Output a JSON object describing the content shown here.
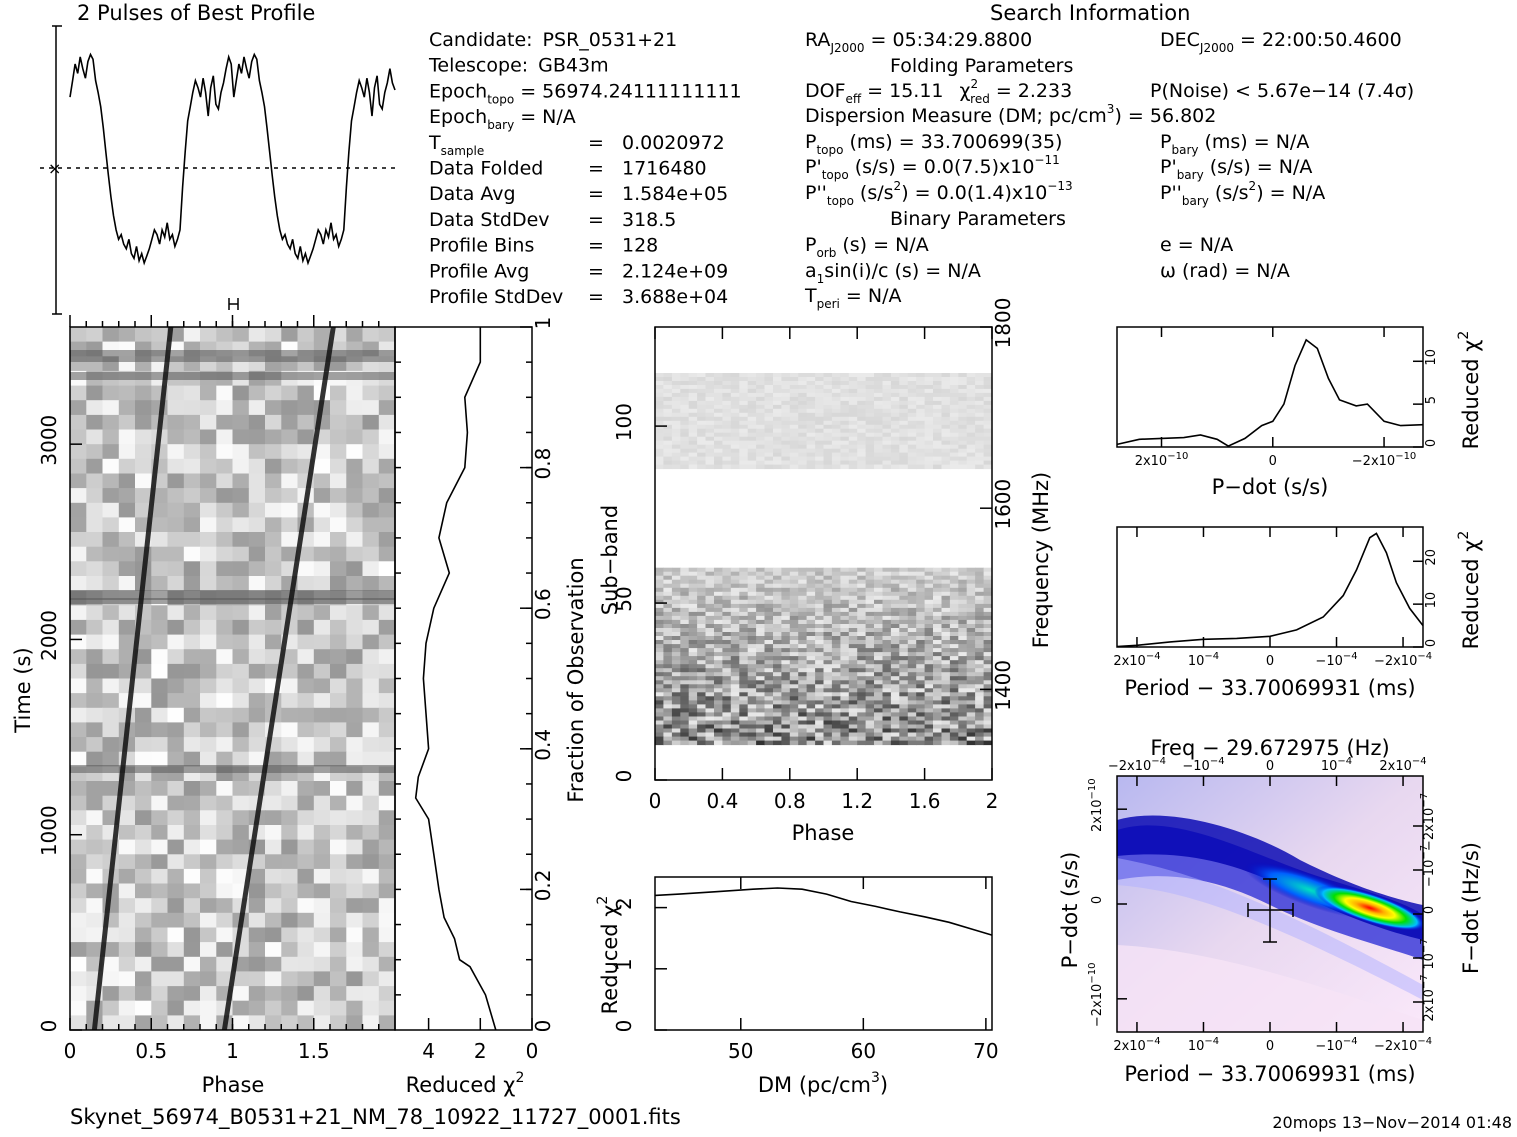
{
  "header": {
    "profile_title": "2 Pulses of Best Profile",
    "search_title": "Search Information",
    "folding_title": "Folding Parameters",
    "binary_title": "Binary Parameters"
  },
  "info": {
    "left": [
      {
        "label": "Candidate:",
        "value": "PSR_0531+21"
      },
      {
        "label": "Telescope:",
        "value": "GB43m"
      },
      {
        "label": "Epoch",
        "sub": "topo",
        "value": "= 56974.24111111111"
      },
      {
        "label": "Epoch",
        "sub": "bary",
        "value": "= N/A"
      },
      {
        "label": "T",
        "sub": "sample",
        "value": "0.0020972"
      },
      {
        "label": "Data Folded",
        "value": "1716480"
      },
      {
        "label": "Data Avg",
        "value": "1.584e+05"
      },
      {
        "label": "Data StdDev",
        "value": "318.5"
      },
      {
        "label": "Profile Bins",
        "value": "128"
      },
      {
        "label": "Profile Avg",
        "value": "2.124e+09"
      },
      {
        "label": "Profile StdDev",
        "value": "3.688e+04"
      }
    ],
    "ra": "RA",
    "ra_sub": "J2000",
    "ra_value": "= 05:34:29.8800",
    "dec": "DEC",
    "dec_sub": "J2000",
    "dec_value": "= 22:00:50.4600",
    "dof": "DOF",
    "dof_sub": "eff",
    "dof_value": "= 15.11",
    "chi": "χ",
    "chi_sup": "2",
    "chi_sub": "red",
    "chi_value": "= 2.233",
    "pnoise": "P(Noise) < 5.67e−14   (7.4σ)",
    "dm_line": "Dispersion Measure (DM; pc/cm",
    "dm_sup": "3",
    "dm_value": ") = 56.802",
    "ptopo": "P",
    "ptopo_sub": "topo",
    "ptopo_value": "(ms) =  33.700699(35)",
    "pbary": "P",
    "pbary_sub": "bary",
    "pbary_value": "(ms) = N/A",
    "pdtopo": "P'",
    "pdtopo_sub": "topo",
    "pdtopo_value": "(s/s) = 0.0(7.5)x10",
    "pdtopo_exp": "−11",
    "pdbary": "P'",
    "pdbary_sub": "bary",
    "pdbary_value": "(s/s) = N/A",
    "pddtopo": "P''",
    "pddtopo_sub": "topo",
    "pddtopo_value": "(s/s",
    "pddtopo_sup": "2",
    "pddtopo_value2": ") = 0.0(1.4)x10",
    "pddtopo_exp": "−13",
    "pddbary": "P''",
    "pddbary_sub": "bary",
    "pddbary_value": "(s/s",
    "pddbary_sup": "2",
    "pddbary_value2": ") = N/A",
    "porb": "P",
    "porb_sub": "orb",
    "porb_value": "(s) = N/A",
    "asini": "a",
    "asini_sub": "1",
    "asini_value": "sin(i)/c (s) = N/A",
    "tperi": "T",
    "tperi_sub": "peri",
    "tperi_value": "= N/A",
    "ecc": "e = N/A",
    "omega": "ω (rad) = N/A"
  },
  "footer": {
    "filename": "Skynet_56974_B0531+21_NM_78_10922_11727_0001.fits",
    "stamp": "20mops 13−Nov−2014 01:48"
  },
  "chart_data": [
    {
      "id": "profile",
      "type": "line",
      "title": "2 Pulses of Best Profile",
      "xlim": [
        0,
        2
      ],
      "x_label": "",
      "y_label": "",
      "values": [
        0.78,
        0.85,
        0.92,
        0.88,
        0.95,
        0.9,
        0.86,
        0.93,
        0.96,
        0.94,
        0.85,
        0.8,
        0.74,
        0.65,
        0.55,
        0.45,
        0.36,
        0.28,
        0.22,
        0.18,
        0.2,
        0.16,
        0.14,
        0.18,
        0.12,
        0.1,
        0.15,
        0.09,
        0.12,
        0.08,
        0.11,
        0.14,
        0.18,
        0.22,
        0.2,
        0.16,
        0.22,
        0.19,
        0.25,
        0.18,
        0.2,
        0.15,
        0.18,
        0.22,
        0.4,
        0.55,
        0.68,
        0.74,
        0.8,
        0.85,
        0.82,
        0.78,
        0.86,
        0.8,
        0.7,
        0.82,
        0.87,
        0.75,
        0.73,
        0.8,
        0.84,
        0.9,
        0.95,
        0.92,
        0.78,
        0.85,
        0.92,
        0.88,
        0.95,
        0.9,
        0.86,
        0.93,
        0.96,
        0.94,
        0.85,
        0.8,
        0.74,
        0.65,
        0.55,
        0.45,
        0.36,
        0.28,
        0.22,
        0.18,
        0.2,
        0.16,
        0.14,
        0.18,
        0.12,
        0.1,
        0.15,
        0.09,
        0.12,
        0.08,
        0.11,
        0.14,
        0.18,
        0.22,
        0.2,
        0.16,
        0.22,
        0.19,
        0.25,
        0.18,
        0.2,
        0.15,
        0.18,
        0.22,
        0.4,
        0.55,
        0.68,
        0.74,
        0.8,
        0.85,
        0.82,
        0.78,
        0.86,
        0.8,
        0.7,
        0.82,
        0.87,
        0.75,
        0.73,
        0.8,
        0.84,
        0.9,
        0.84,
        0.81
      ],
      "noise_level_fraction": 0.55
    },
    {
      "id": "time-phase",
      "type": "heatmap",
      "x_label": "Phase",
      "y_label": "Time (s)",
      "x_ticks": [
        "0",
        "0.5",
        "1",
        "1.5"
      ],
      "x_tick_values": [
        0,
        0.5,
        1,
        1.5
      ],
      "xlim": [
        0,
        2
      ],
      "y_ticks": [
        "0",
        "1000",
        "2000",
        "3000"
      ],
      "y_tick_values": [
        0,
        1000,
        2000,
        3000
      ],
      "ylim": [
        0,
        3600
      ],
      "pulse_start_phase": [
        0.15,
        0.95
      ],
      "pulse_end_phase": [
        0.62,
        1.62
      ]
    },
    {
      "id": "chi-vs-time",
      "type": "line",
      "x_label": "Reduced χ",
      "x_label_sup": "2",
      "x_ticks": [
        "4",
        "2",
        "0"
      ],
      "x_tick_values": [
        4,
        2,
        0
      ],
      "xlim": [
        5.3,
        0
      ],
      "y_label": "Fraction of Observation",
      "y_ticks": [
        "0.2",
        "0.4",
        "0.6",
        "0.8",
        "1"
      ],
      "y_tick_values": [
        0.2,
        0.4,
        0.6,
        0.8,
        1
      ],
      "ylim": [
        0,
        1
      ],
      "points": [
        [
          1.4,
          0
        ],
        [
          1.8,
          0.05
        ],
        [
          2.4,
          0.09
        ],
        [
          2.8,
          0.1
        ],
        [
          3.0,
          0.13
        ],
        [
          3.4,
          0.16
        ],
        [
          3.6,
          0.2
        ],
        [
          3.8,
          0.25
        ],
        [
          4.0,
          0.3
        ],
        [
          4.5,
          0.33
        ],
        [
          4.4,
          0.36
        ],
        [
          4.0,
          0.4
        ],
        [
          4.1,
          0.45
        ],
        [
          4.2,
          0.5
        ],
        [
          4.1,
          0.55
        ],
        [
          3.8,
          0.6
        ],
        [
          3.2,
          0.65
        ],
        [
          3.6,
          0.7
        ],
        [
          3.3,
          0.75
        ],
        [
          2.6,
          0.8
        ],
        [
          2.5,
          0.85
        ],
        [
          2.6,
          0.9
        ],
        [
          2.0,
          0.95
        ],
        [
          2.0,
          1.0
        ]
      ]
    },
    {
      "id": "subband-phase",
      "type": "heatmap",
      "x_label": "Phase",
      "x_ticks": [
        "0",
        "0.4",
        "0.8",
        "1.2",
        "1.6",
        "2"
      ],
      "x_tick_values": [
        0,
        0.4,
        0.8,
        1.2,
        1.6,
        2
      ],
      "xlim": [
        0,
        2
      ],
      "y_label": "Sub−band",
      "y_ticks": [
        "0",
        "50",
        "100"
      ],
      "y_tick_values": [
        0,
        50,
        100
      ],
      "ylim": [
        0,
        128
      ],
      "y2_label": "Frequency (MHz)",
      "y2_ticks": [
        "1400",
        "1600",
        "1800"
      ],
      "y2_tick_values": [
        1400,
        1600,
        1800
      ],
      "y2lim": [
        1300,
        1800
      ],
      "band_low_subbands": [
        10,
        60
      ],
      "band_high_subbands": [
        88,
        115
      ]
    },
    {
      "id": "dm-curve",
      "type": "line",
      "x_label": "DM (pc/cm",
      "x_label_sup": "3",
      "x_label_end": ")",
      "x_ticks": [
        "50",
        "60",
        "70"
      ],
      "x_tick_values": [
        50,
        60,
        70
      ],
      "xlim": [
        43,
        70.5
      ],
      "y_label": "Reduced χ",
      "y_label_sup": "2",
      "y_ticks": [
        "0",
        "1",
        "2"
      ],
      "y_tick_values": [
        0,
        1,
        2
      ],
      "ylim": [
        0,
        2.5
      ],
      "points": [
        [
          43,
          2.2
        ],
        [
          45,
          2.22
        ],
        [
          48,
          2.26
        ],
        [
          51,
          2.3
        ],
        [
          53,
          2.32
        ],
        [
          55,
          2.3
        ],
        [
          57,
          2.22
        ],
        [
          59,
          2.1
        ],
        [
          61,
          2.02
        ],
        [
          63,
          1.93
        ],
        [
          65,
          1.85
        ],
        [
          67,
          1.76
        ],
        [
          69,
          1.64
        ],
        [
          70.5,
          1.55
        ]
      ]
    },
    {
      "id": "pdot-curve",
      "type": "line",
      "x_label": "P−dot (s/s)",
      "x_ticks": [
        "2x10",
        "0",
        "−2x10"
      ],
      "x_tick_exp": [
        "−10",
        "",
        "−10"
      ],
      "x_tick_values": [
        2e-10,
        0,
        -2e-10
      ],
      "xlim": [
        2.8e-10,
        -2.7e-10
      ],
      "y_label": "Reduced χ",
      "y_label_sup": "2",
      "y_ticks": [
        "0",
        "5",
        "10"
      ],
      "y_tick_values": [
        0,
        5,
        10
      ],
      "ylim": [
        0,
        14
      ],
      "points": [
        [
          2.8e-10,
          0.3
        ],
        [
          2.4e-10,
          0.9
        ],
        [
          2e-10,
          1.0
        ],
        [
          1.6e-10,
          1.1
        ],
        [
          1.3e-10,
          1.4
        ],
        [
          1e-10,
          0.9
        ],
        [
          8e-11,
          0.1
        ],
        [
          5e-11,
          1.0
        ],
        [
          2e-11,
          2.5
        ],
        [
          0,
          3.0
        ],
        [
          -2e-11,
          5.0
        ],
        [
          -4e-11,
          9.5
        ],
        [
          -6e-11,
          12.5
        ],
        [
          -8e-11,
          11.5
        ],
        [
          -1e-10,
          8.0
        ],
        [
          -1.2e-10,
          5.5
        ],
        [
          -1.5e-10,
          4.8
        ],
        [
          -1.7e-10,
          5.0
        ],
        [
          -2e-10,
          3.0
        ],
        [
          -2.3e-10,
          2.5
        ],
        [
          -2.7e-10,
          2.6
        ]
      ]
    },
    {
      "id": "period-curve",
      "type": "line",
      "x_label": "Period − 33.70069931 (ms)",
      "x_ticks": [
        "2x10",
        "10",
        "0",
        "−10",
        "−2x10"
      ],
      "x_tick_exp": [
        "−4",
        "−4",
        "",
        "−4",
        "−4"
      ],
      "x_tick_values": [
        0.0002,
        0.0001,
        0,
        -0.0001,
        -0.0002
      ],
      "xlim": [
        0.00023,
        -0.00023
      ],
      "y_label": "Reduced χ",
      "y_label_sup": "2",
      "y_ticks": [
        "0",
        "10",
        "20"
      ],
      "y_tick_values": [
        0,
        10,
        20
      ],
      "ylim": [
        0,
        28
      ],
      "points": [
        [
          0.00023,
          0.1
        ],
        [
          0.0002,
          0.4
        ],
        [
          0.00015,
          1.2
        ],
        [
          0.0001,
          1.8
        ],
        [
          5e-05,
          2.0
        ],
        [
          0,
          2.5
        ],
        [
          -4e-05,
          4.0
        ],
        [
          -8e-05,
          7.0
        ],
        [
          -0.00011,
          12.0
        ],
        [
          -0.00013,
          18.0
        ],
        [
          -0.00015,
          25.5
        ],
        [
          -0.00016,
          26.5
        ],
        [
          -0.000175,
          22.0
        ],
        [
          -0.00019,
          15.0
        ],
        [
          -0.00021,
          9.0
        ],
        [
          -0.00023,
          5.0
        ]
      ]
    },
    {
      "id": "period-pdot",
      "type": "heatmap",
      "title": "Freq − 29.672975 (Hz)",
      "x_label": "Period − 33.70069931 (ms)",
      "x_ticks": [
        "2x10",
        "10",
        "0",
        "−10",
        "−2x10"
      ],
      "x_tick_exp": [
        "−4",
        "−4",
        "",
        "−4",
        "−4"
      ],
      "x_tick_values": [
        0.0002,
        0.0001,
        0,
        -0.0001,
        -0.0002
      ],
      "xlim": [
        0.00023,
        -0.00023
      ],
      "top_ticks": [
        "−2x10",
        "−10",
        "0",
        "10",
        "2x10"
      ],
      "top_tick_exp": [
        "−4",
        "−4",
        "",
        "−4",
        "−4"
      ],
      "y_label": "P−dot (s/s)",
      "y_ticks": [
        "−2x10",
        "0",
        "2x10"
      ],
      "y_tick_exp": [
        "−10",
        "",
        "−10"
      ],
      "y_tick_values": [
        -2e-10,
        0,
        2e-10
      ],
      "ylim": [
        2.7e-10,
        -2.7e-10
      ],
      "y2_label": "F−dot (Hz/s)",
      "y2_ticks": [
        "−2x10",
        "−10",
        "0",
        "10",
        "2x10"
      ],
      "y2_tick_exp": [
        "−7",
        "−7",
        "",
        "−7",
        "−7"
      ],
      "best_period": 0,
      "best_pdot": 0,
      "period_err": 7e-05,
      "pdot_err": 1e-10,
      "peak_period": -0.00016,
      "peak_pdot": 1e-11
    }
  ]
}
